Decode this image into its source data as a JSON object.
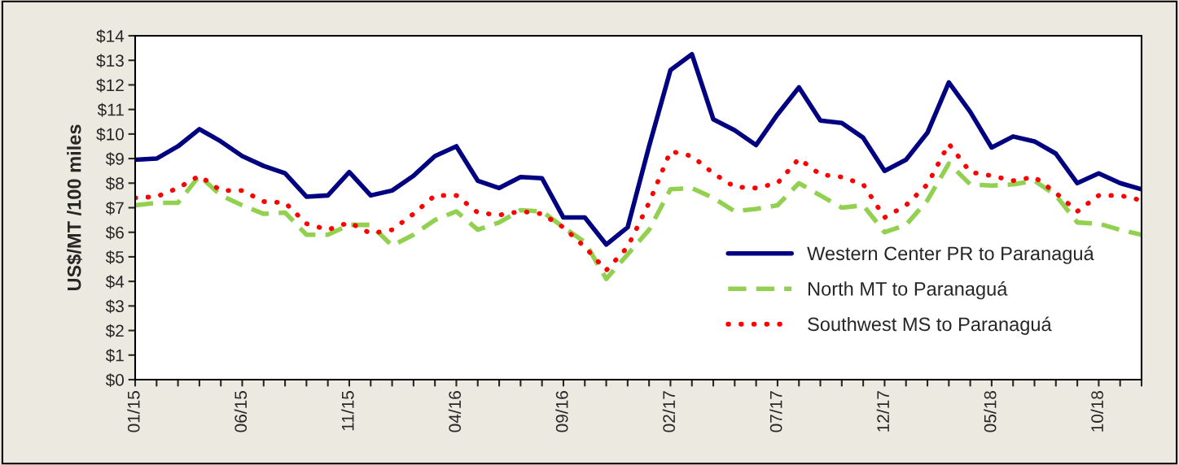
{
  "chart_data": {
    "type": "line",
    "ylabel": "US$/MT /100 miles",
    "categories": [
      "01/15",
      null,
      null,
      null,
      null,
      "06/15",
      null,
      null,
      null,
      null,
      "11/15",
      null,
      null,
      null,
      null,
      "04/16",
      null,
      null,
      null,
      null,
      "09/16",
      null,
      null,
      null,
      null,
      "02/17",
      null,
      null,
      null,
      null,
      "07/17",
      null,
      null,
      null,
      null,
      "12/17",
      null,
      null,
      null,
      null,
      "05/18",
      null,
      null,
      null,
      null,
      "10/18",
      null,
      null
    ],
    "series": [
      {
        "name": "Western Center PR to Paranaguá",
        "color": "#000080",
        "line_style": "solid",
        "values": [
          8.95,
          9.0,
          9.5,
          10.2,
          9.7,
          9.1,
          8.7,
          8.4,
          7.45,
          7.5,
          8.45,
          7.5,
          7.7,
          8.3,
          9.1,
          9.5,
          8.1,
          7.8,
          8.25,
          8.2,
          6.6,
          6.6,
          5.5,
          6.2,
          9.5,
          12.6,
          13.25,
          10.6,
          10.15,
          9.55,
          10.8,
          11.9,
          10.55,
          10.45,
          9.85,
          8.5,
          8.95,
          10.05,
          12.1,
          10.9,
          9.45,
          9.9,
          9.7,
          9.2,
          8.0,
          8.4,
          8.0,
          7.75
        ]
      },
      {
        "name": "North MT to Paranaguá",
        "color": "#92d050",
        "line_style": "dashed",
        "values": [
          7.1,
          7.2,
          7.2,
          8.3,
          7.5,
          7.1,
          6.75,
          6.8,
          5.9,
          5.9,
          6.3,
          6.3,
          5.45,
          5.9,
          6.5,
          6.85,
          6.1,
          6.4,
          6.9,
          6.85,
          6.2,
          5.6,
          4.1,
          5.1,
          6.1,
          7.75,
          7.8,
          7.4,
          6.85,
          6.95,
          7.1,
          8.0,
          7.5,
          7.0,
          7.1,
          6.0,
          6.3,
          7.3,
          8.8,
          7.95,
          7.9,
          7.95,
          8.1,
          7.5,
          6.4,
          6.35,
          6.1,
          5.9
        ]
      },
      {
        "name": "Southwest MS to Paranaguá",
        "color": "#ff0000",
        "line_style": "dotted",
        "values": [
          7.4,
          7.45,
          7.8,
          8.3,
          7.7,
          7.7,
          7.25,
          7.2,
          6.35,
          6.1,
          6.4,
          5.95,
          6.1,
          6.75,
          7.5,
          7.5,
          6.8,
          6.7,
          6.85,
          6.75,
          6.2,
          5.4,
          4.45,
          5.4,
          7.2,
          9.3,
          9.1,
          8.4,
          7.85,
          7.8,
          8.0,
          9.0,
          8.35,
          8.25,
          7.95,
          6.6,
          7.1,
          7.95,
          9.6,
          8.45,
          8.3,
          8.1,
          8.25,
          7.6,
          6.85,
          7.5,
          7.5,
          7.3
        ]
      }
    ],
    "ylim": [
      0,
      14
    ],
    "yticks": [
      {
        "value": 0,
        "label": "$0"
      },
      {
        "value": 1,
        "label": "$1"
      },
      {
        "value": 2,
        "label": "$2"
      },
      {
        "value": 3,
        "label": "$3"
      },
      {
        "value": 4,
        "label": "$4"
      },
      {
        "value": 5,
        "label": "$5"
      },
      {
        "value": 6,
        "label": "$6"
      },
      {
        "value": 7,
        "label": "$7"
      },
      {
        "value": 8,
        "label": "$8"
      },
      {
        "value": 9,
        "label": "$9"
      },
      {
        "value": 10,
        "label": "$10"
      },
      {
        "value": 11,
        "label": "$11"
      },
      {
        "value": 12,
        "label": "$12"
      },
      {
        "value": 13,
        "label": "$13"
      },
      {
        "value": 14,
        "label": "$14"
      }
    ],
    "grid": false,
    "legend": "bottom right",
    "marker": "none"
  }
}
